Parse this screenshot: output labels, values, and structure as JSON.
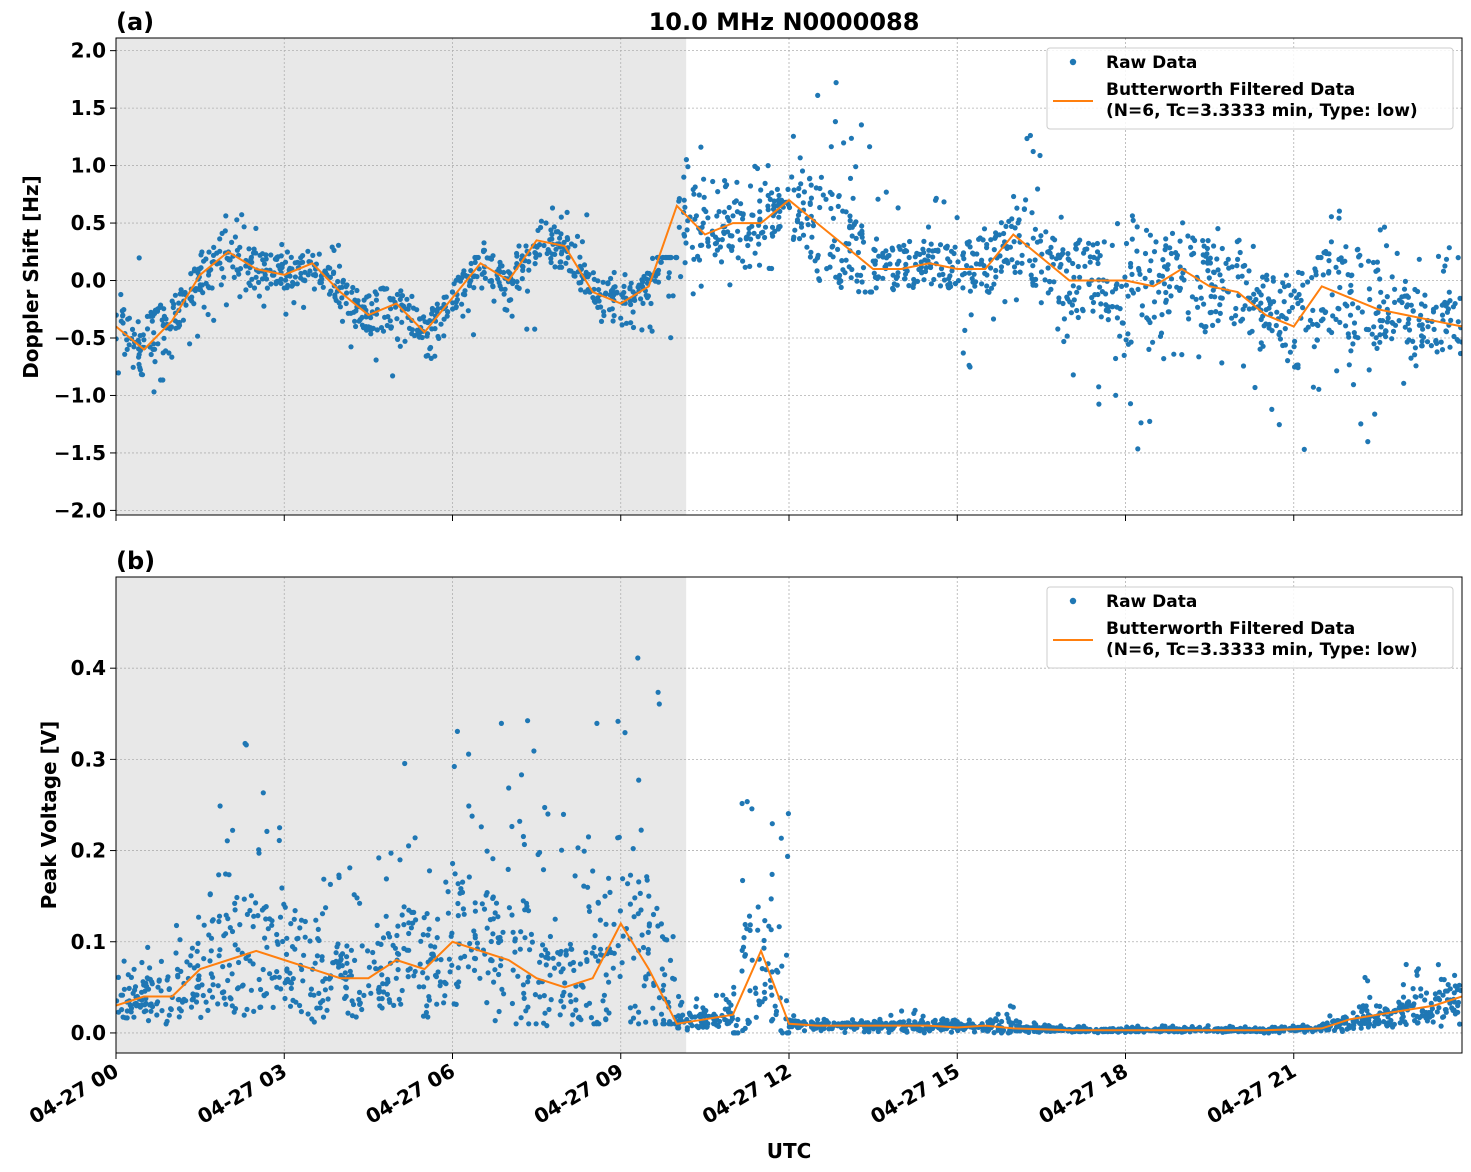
{
  "chart_data": [
    {
      "type": "scatter+line",
      "panel_label": "(a)",
      "title": "10.0 MHz N0000088",
      "ylabel": "Doppler Shift [Hz]",
      "xlabel": "",
      "ylim": [
        -2.04,
        2.11
      ],
      "yticks": [
        -2.0,
        -1.5,
        -1.0,
        -0.5,
        0.0,
        0.5,
        1.0,
        1.5,
        2.0
      ],
      "ytick_labels": [
        "−2.0",
        "−1.5",
        "−1.0",
        "−0.5",
        "0.0",
        "0.5",
        "1.0",
        "1.5",
        "2.0"
      ],
      "grid": true,
      "legend_placement": "top-right",
      "shaded_night_until": "10:10",
      "series": [
        {
          "name": "Raw Data",
          "kind": "points",
          "color": "#1f77b4"
        },
        {
          "name": "Butterworth Filtered Data\n(N=6, Tc=3.3333 min, Type: low)",
          "kind": "line",
          "color": "#ff7f0e"
        }
      ],
      "legend": [
        "Raw Data",
        "Butterworth Filtered Data",
        "(N=6, Tc=3.3333 min, Type: low)"
      ],
      "x": [
        "00:00",
        "00:30",
        "01:00",
        "01:30",
        "02:00",
        "02:30",
        "03:00",
        "03:30",
        "04:00",
        "04:30",
        "05:00",
        "05:30",
        "06:00",
        "06:30",
        "07:00",
        "07:30",
        "08:00",
        "08:30",
        "09:00",
        "09:30",
        "10:00",
        "10:30",
        "11:00",
        "11:30",
        "12:00",
        "12:30",
        "13:00",
        "13:30",
        "14:00",
        "14:30",
        "15:00",
        "15:30",
        "16:00",
        "16:30",
        "17:00",
        "17:30",
        "18:00",
        "18:30",
        "19:00",
        "19:30",
        "20:00",
        "20:30",
        "21:00",
        "21:30",
        "22:00",
        "22:30",
        "23:00",
        "23:30",
        "24:00"
      ],
      "filtered": [
        -0.4,
        -0.6,
        -0.35,
        0.05,
        0.25,
        0.1,
        0.05,
        0.15,
        -0.1,
        -0.3,
        -0.2,
        -0.45,
        -0.15,
        0.15,
        0.0,
        0.35,
        0.3,
        -0.1,
        -0.2,
        -0.05,
        0.65,
        0.4,
        0.5,
        0.5,
        0.7,
        0.5,
        0.3,
        0.1,
        0.1,
        0.15,
        0.1,
        0.1,
        0.4,
        0.2,
        0.0,
        0.0,
        0.0,
        -0.05,
        0.1,
        -0.05,
        -0.1,
        -0.3,
        -0.4,
        -0.05,
        -0.15,
        -0.25,
        -0.3,
        -0.35,
        -0.4
      ],
      "raw_max": [
        0.2,
        0.0,
        0.1,
        0.6,
        0.6,
        0.4,
        0.3,
        0.35,
        0.1,
        0.0,
        0.0,
        -0.1,
        0.2,
        0.35,
        0.3,
        0.7,
        0.6,
        0.2,
        0.1,
        0.2,
        1.3,
        0.9,
        1.0,
        1.0,
        1.5,
        1.9,
        1.4,
        0.8,
        0.6,
        0.8,
        0.5,
        0.6,
        1.4,
        0.6,
        0.5,
        0.5,
        0.9,
        0.5,
        1.0,
        0.5,
        0.4,
        0.3,
        0.2,
        0.9,
        0.6,
        0.5,
        0.3,
        0.3,
        0.0
      ],
      "raw_min": [
        -0.9,
        -1.25,
        -0.7,
        -0.4,
        -0.2,
        -0.3,
        -0.3,
        -0.2,
        -0.6,
        -0.9,
        -0.6,
        -0.7,
        -0.5,
        -0.3,
        -0.6,
        -0.1,
        -0.1,
        -0.4,
        -0.45,
        -0.5,
        -0.2,
        -0.1,
        0.1,
        0.1,
        -0.1,
        -0.1,
        -0.1,
        -0.1,
        -0.1,
        -0.1,
        -0.8,
        -0.5,
        -0.4,
        -0.6,
        -1.1,
        -1.2,
        -1.8,
        -1.2,
        -1.0,
        -0.8,
        -1.0,
        -1.3,
        -1.7,
        -0.8,
        -1.5,
        -0.9,
        -0.8,
        -0.8,
        -0.8
      ]
    },
    {
      "type": "scatter+line",
      "panel_label": "(b)",
      "title": "",
      "ylabel": "Peak Voltage [V]",
      "xlabel": "UTC",
      "ylim": [
        -0.022,
        0.5
      ],
      "yticks": [
        0.0,
        0.1,
        0.2,
        0.3,
        0.4
      ],
      "ytick_labels": [
        "0.0",
        "0.1",
        "0.2",
        "0.3",
        "0.4"
      ],
      "xtick_labels": [
        "04-27 00",
        "04-27 03",
        "04-27 06",
        "04-27 09",
        "04-27 12",
        "04-27 15",
        "04-27 18",
        "04-27 21"
      ],
      "xticks_hours": [
        0,
        3,
        6,
        9,
        12,
        15,
        18,
        21
      ],
      "xlim_hours": [
        0,
        24
      ],
      "grid": true,
      "legend_placement": "top-right",
      "shaded_night_until": "10:10",
      "series": [
        {
          "name": "Raw Data",
          "kind": "points",
          "color": "#1f77b4"
        },
        {
          "name": "Butterworth Filtered Data\n(N=6, Tc=3.3333 min, Type: low)",
          "kind": "line",
          "color": "#ff7f0e"
        }
      ],
      "legend": [
        "Raw Data",
        "Butterworth Filtered Data",
        "(N=6, Tc=3.3333 min, Type: low)"
      ],
      "x": [
        "00:00",
        "00:30",
        "01:00",
        "01:30",
        "02:00",
        "02:30",
        "03:00",
        "03:30",
        "04:00",
        "04:30",
        "05:00",
        "05:30",
        "06:00",
        "06:30",
        "07:00",
        "07:30",
        "08:00",
        "08:30",
        "09:00",
        "09:30",
        "10:00",
        "10:30",
        "11:00",
        "11:30",
        "12:00",
        "12:30",
        "13:00",
        "13:30",
        "14:00",
        "14:30",
        "15:00",
        "15:30",
        "16:00",
        "16:30",
        "17:00",
        "17:30",
        "18:00",
        "18:30",
        "19:00",
        "19:30",
        "20:00",
        "20:30",
        "21:00",
        "21:30",
        "22:00",
        "22:30",
        "23:00",
        "23:30",
        "24:00"
      ],
      "filtered": [
        0.03,
        0.04,
        0.04,
        0.07,
        0.08,
        0.09,
        0.08,
        0.07,
        0.06,
        0.06,
        0.08,
        0.07,
        0.1,
        0.09,
        0.08,
        0.06,
        0.05,
        0.06,
        0.12,
        0.07,
        0.01,
        0.015,
        0.02,
        0.09,
        0.01,
        0.008,
        0.008,
        0.008,
        0.008,
        0.008,
        0.006,
        0.008,
        0.005,
        0.004,
        0.003,
        0.003,
        0.003,
        0.003,
        0.003,
        0.003,
        0.003,
        0.003,
        0.004,
        0.005,
        0.015,
        0.02,
        0.025,
        0.03,
        0.04
      ],
      "raw_max": [
        0.08,
        0.1,
        0.16,
        0.25,
        0.32,
        0.3,
        0.28,
        0.2,
        0.2,
        0.2,
        0.3,
        0.28,
        0.36,
        0.34,
        0.36,
        0.25,
        0.22,
        0.35,
        0.47,
        0.41,
        0.04,
        0.05,
        0.32,
        0.25,
        0.02,
        0.015,
        0.015,
        0.02,
        0.025,
        0.02,
        0.015,
        0.035,
        0.015,
        0.01,
        0.008,
        0.008,
        0.008,
        0.008,
        0.008,
        0.008,
        0.008,
        0.008,
        0.01,
        0.02,
        0.065,
        0.07,
        0.08,
        0.09,
        0.12
      ],
      "raw_min": [
        0.0,
        0.005,
        0.01,
        0.01,
        0.01,
        0.01,
        0.01,
        0.01,
        0.01,
        0.005,
        0.01,
        0.01,
        0.01,
        0.01,
        0.01,
        0.005,
        0.005,
        0.01,
        0.01,
        0.01,
        0.0,
        0.0,
        0.0,
        0.0,
        0.0,
        0.0,
        0.0,
        0.0,
        0.0,
        0.0,
        0.0,
        0.0,
        0.0,
        0.0,
        0.0,
        0.0,
        0.0,
        0.0,
        0.0,
        0.0,
        0.0,
        0.0,
        0.0,
        0.0,
        0.005,
        0.005,
        0.005,
        0.005,
        0.01
      ]
    }
  ]
}
